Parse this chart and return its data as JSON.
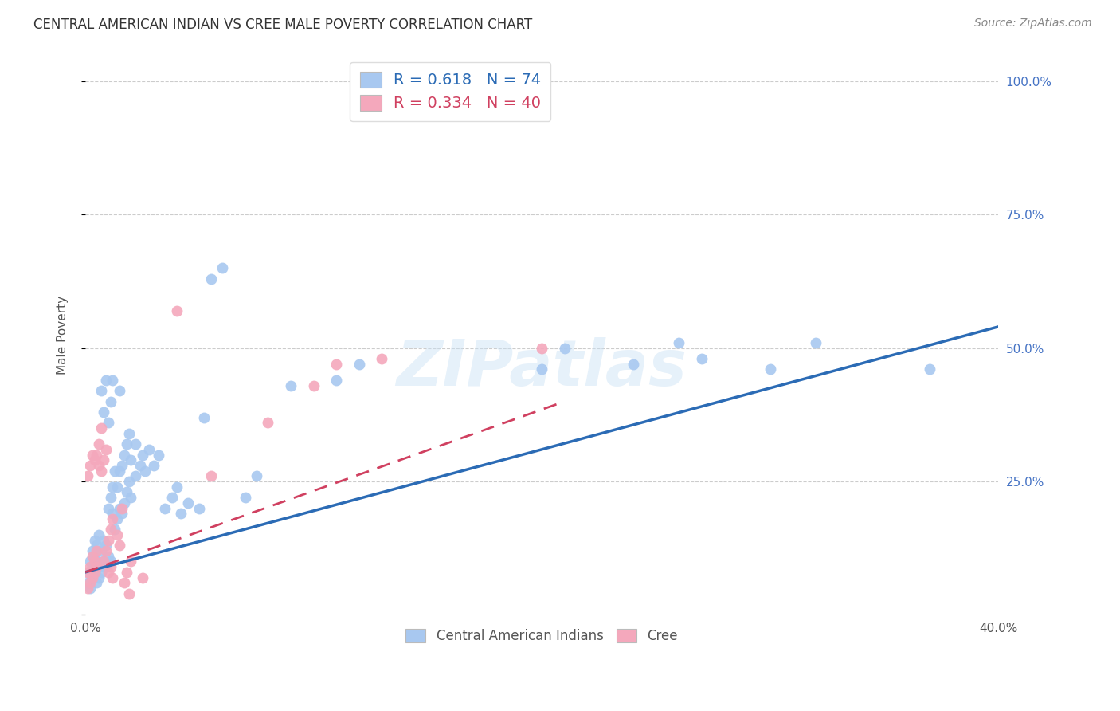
{
  "title": "CENTRAL AMERICAN INDIAN VS CREE MALE POVERTY CORRELATION CHART",
  "source": "Source: ZipAtlas.com",
  "ylabel": "Male Poverty",
  "xlim": [
    0.0,
    0.4
  ],
  "ylim": [
    0.0,
    1.05
  ],
  "xticks": [
    0.0,
    0.1,
    0.2,
    0.3,
    0.4
  ],
  "xticklabels": [
    "0.0%",
    "",
    "",
    "",
    "40.0%"
  ],
  "ytick_positions": [
    0.25,
    0.5,
    0.75,
    1.0
  ],
  "yticklabels_right": [
    "25.0%",
    "50.0%",
    "75.0%",
    "100.0%"
  ],
  "blue_color": "#A8C8F0",
  "pink_color": "#F4A8BC",
  "blue_line_color": "#2B6BB5",
  "pink_line_color": "#D04060",
  "watermark_text": "ZIPatlas",
  "blue_points": [
    [
      0.001,
      0.06
    ],
    [
      0.001,
      0.08
    ],
    [
      0.002,
      0.05
    ],
    [
      0.002,
      0.1
    ],
    [
      0.003,
      0.07
    ],
    [
      0.003,
      0.09
    ],
    [
      0.003,
      0.12
    ],
    [
      0.004,
      0.08
    ],
    [
      0.004,
      0.11
    ],
    [
      0.004,
      0.14
    ],
    [
      0.005,
      0.06
    ],
    [
      0.005,
      0.1
    ],
    [
      0.005,
      0.13
    ],
    [
      0.006,
      0.07
    ],
    [
      0.006,
      0.09
    ],
    [
      0.006,
      0.15
    ],
    [
      0.007,
      0.08
    ],
    [
      0.007,
      0.12
    ],
    [
      0.007,
      0.42
    ],
    [
      0.008,
      0.1
    ],
    [
      0.008,
      0.14
    ],
    [
      0.008,
      0.38
    ],
    [
      0.009,
      0.09
    ],
    [
      0.009,
      0.13
    ],
    [
      0.009,
      0.44
    ],
    [
      0.01,
      0.11
    ],
    [
      0.01,
      0.2
    ],
    [
      0.01,
      0.36
    ],
    [
      0.011,
      0.1
    ],
    [
      0.011,
      0.22
    ],
    [
      0.011,
      0.4
    ],
    [
      0.012,
      0.19
    ],
    [
      0.012,
      0.24
    ],
    [
      0.012,
      0.44
    ],
    [
      0.013,
      0.16
    ],
    [
      0.013,
      0.27
    ],
    [
      0.014,
      0.18
    ],
    [
      0.014,
      0.24
    ],
    [
      0.015,
      0.2
    ],
    [
      0.015,
      0.27
    ],
    [
      0.015,
      0.42
    ],
    [
      0.016,
      0.19
    ],
    [
      0.016,
      0.28
    ],
    [
      0.017,
      0.21
    ],
    [
      0.017,
      0.3
    ],
    [
      0.018,
      0.23
    ],
    [
      0.018,
      0.32
    ],
    [
      0.019,
      0.25
    ],
    [
      0.019,
      0.34
    ],
    [
      0.02,
      0.22
    ],
    [
      0.02,
      0.29
    ],
    [
      0.022,
      0.26
    ],
    [
      0.022,
      0.32
    ],
    [
      0.024,
      0.28
    ],
    [
      0.025,
      0.3
    ],
    [
      0.026,
      0.27
    ],
    [
      0.028,
      0.31
    ],
    [
      0.03,
      0.28
    ],
    [
      0.032,
      0.3
    ],
    [
      0.035,
      0.2
    ],
    [
      0.038,
      0.22
    ],
    [
      0.04,
      0.24
    ],
    [
      0.042,
      0.19
    ],
    [
      0.045,
      0.21
    ],
    [
      0.05,
      0.2
    ],
    [
      0.052,
      0.37
    ],
    [
      0.055,
      0.63
    ],
    [
      0.06,
      0.65
    ],
    [
      0.07,
      0.22
    ],
    [
      0.075,
      0.26
    ],
    [
      0.09,
      0.43
    ],
    [
      0.11,
      0.44
    ],
    [
      0.12,
      0.47
    ],
    [
      0.2,
      0.46
    ],
    [
      0.21,
      0.5
    ],
    [
      0.24,
      0.47
    ],
    [
      0.26,
      0.51
    ],
    [
      0.27,
      0.48
    ],
    [
      0.3,
      0.46
    ],
    [
      0.32,
      0.51
    ],
    [
      0.37,
      0.46
    ]
  ],
  "pink_points": [
    [
      0.001,
      0.05
    ],
    [
      0.001,
      0.08
    ],
    [
      0.001,
      0.26
    ],
    [
      0.002,
      0.06
    ],
    [
      0.002,
      0.09
    ],
    [
      0.002,
      0.28
    ],
    [
      0.003,
      0.07
    ],
    [
      0.003,
      0.11
    ],
    [
      0.003,
      0.3
    ],
    [
      0.004,
      0.08
    ],
    [
      0.004,
      0.1
    ],
    [
      0.004,
      0.29
    ],
    [
      0.005,
      0.09
    ],
    [
      0.005,
      0.12
    ],
    [
      0.005,
      0.3
    ],
    [
      0.006,
      0.28
    ],
    [
      0.006,
      0.32
    ],
    [
      0.007,
      0.27
    ],
    [
      0.007,
      0.35
    ],
    [
      0.008,
      0.1
    ],
    [
      0.008,
      0.29
    ],
    [
      0.009,
      0.12
    ],
    [
      0.009,
      0.31
    ],
    [
      0.01,
      0.14
    ],
    [
      0.01,
      0.08
    ],
    [
      0.011,
      0.16
    ],
    [
      0.011,
      0.09
    ],
    [
      0.012,
      0.18
    ],
    [
      0.012,
      0.07
    ],
    [
      0.014,
      0.15
    ],
    [
      0.015,
      0.13
    ],
    [
      0.016,
      0.2
    ],
    [
      0.017,
      0.06
    ],
    [
      0.018,
      0.08
    ],
    [
      0.019,
      0.04
    ],
    [
      0.02,
      0.1
    ],
    [
      0.025,
      0.07
    ],
    [
      0.04,
      0.57
    ],
    [
      0.055,
      0.26
    ],
    [
      0.08,
      0.36
    ],
    [
      0.1,
      0.43
    ],
    [
      0.11,
      0.47
    ],
    [
      0.13,
      0.48
    ],
    [
      0.2,
      0.5
    ]
  ],
  "blue_line": [
    [
      0.0,
      0.08
    ],
    [
      0.4,
      0.54
    ]
  ],
  "pink_line": [
    [
      0.0,
      0.08
    ],
    [
      0.21,
      0.4
    ]
  ]
}
